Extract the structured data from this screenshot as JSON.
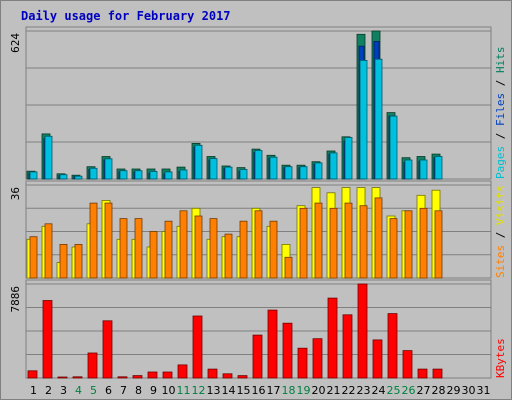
{
  "chart_data": {
    "type": "bar",
    "title": "Daily usage for February 2017",
    "categories": [
      "1",
      "2",
      "3",
      "4",
      "5",
      "6",
      "7",
      "8",
      "9",
      "10",
      "11",
      "12",
      "13",
      "14",
      "15",
      "16",
      "17",
      "18",
      "19",
      "20",
      "21",
      "22",
      "23",
      "24",
      "25",
      "26",
      "27",
      "28",
      "29",
      "30",
      "31"
    ],
    "weekend_days": [
      "4",
      "5",
      "11",
      "12",
      "18",
      "19",
      "25",
      "26"
    ],
    "panels": [
      {
        "id": "top",
        "max_label": "624",
        "ymax": 624,
        "side_labels": [
          {
            "text": "Pages",
            "color": "#00c0d0"
          },
          {
            "text": "Files",
            "color": "#0040c0"
          },
          {
            "text": "Hits",
            "color": "#008060"
          }
        ],
        "series": [
          {
            "name": "Hits",
            "color": "#108060",
            "values": [
              33,
              190,
              22,
              16,
              52,
              95,
              42,
              42,
              42,
              42,
              50,
              150,
              95,
              55,
              48,
              126,
              100,
              58,
              58,
              73,
              118,
              178,
              610,
              624,
              280,
              90,
              95,
              105,
              0,
              0,
              0
            ]
          },
          {
            "name": "Files",
            "color": "#0040c0",
            "values": [
              25,
              170,
              15,
              10,
              40,
              80,
              30,
              30,
              25,
              22,
              32,
              135,
              80,
              45,
              32,
              112,
              88,
              48,
              48,
              62,
              105,
              160,
              560,
              580,
              265,
              70,
              75,
              90,
              0,
              0,
              0
            ]
          },
          {
            "name": "Pages",
            "color": "#00c0e0",
            "values": [
              30,
              180,
              18,
              12,
              45,
              85,
              35,
              35,
              32,
              30,
              38,
              142,
              86,
              50,
              40,
              120,
              92,
              52,
              52,
              68,
              110,
              175,
              500,
              505,
              265,
              80,
              80,
              95,
              0,
              0,
              0
            ]
          }
        ]
      },
      {
        "id": "middle",
        "max_label": "36",
        "ymax": 36,
        "side_labels": [
          {
            "text": "Sites",
            "color": "#ff8000"
          },
          {
            "text": "Visits",
            "color": "#e0e000"
          }
        ],
        "series": [
          {
            "name": "Visits",
            "color": "#ffff00",
            "values": [
              15,
              20,
              6,
              12,
              21,
              30,
              15,
              15,
              12,
              18,
              20,
              27,
              15,
              16,
              16,
              27,
              20,
              13,
              28,
              35,
              33,
              35,
              35,
              35,
              24,
              26,
              32,
              34,
              0,
              0,
              0
            ]
          },
          {
            "name": "Sites",
            "color": "#ff8000",
            "values": [
              16,
              21,
              13,
              13,
              29,
              29,
              23,
              23,
              18,
              22,
              26,
              24,
              23,
              17,
              22,
              26,
              22,
              8,
              27,
              29,
              27,
              29,
              28,
              31,
              23,
              26,
              27,
              26,
              0,
              0,
              0
            ]
          }
        ]
      },
      {
        "id": "bottom",
        "max_label": "7886",
        "ymax": 7886,
        "side_labels": [
          {
            "text": "KBytes",
            "color": "#ff0000"
          }
        ],
        "series": [
          {
            "name": "KBytes",
            "color": "#ff0000",
            "values": [
              600,
              6500,
              80,
              100,
              2100,
              4800,
              100,
              200,
              500,
              500,
              1100,
              5200,
              750,
              350,
              200,
              3600,
              5700,
              4600,
              2500,
              3300,
              6700,
              5300,
              7886,
              3200,
              5400,
              2300,
              750,
              750,
              0,
              0,
              0
            ]
          }
        ]
      }
    ]
  }
}
